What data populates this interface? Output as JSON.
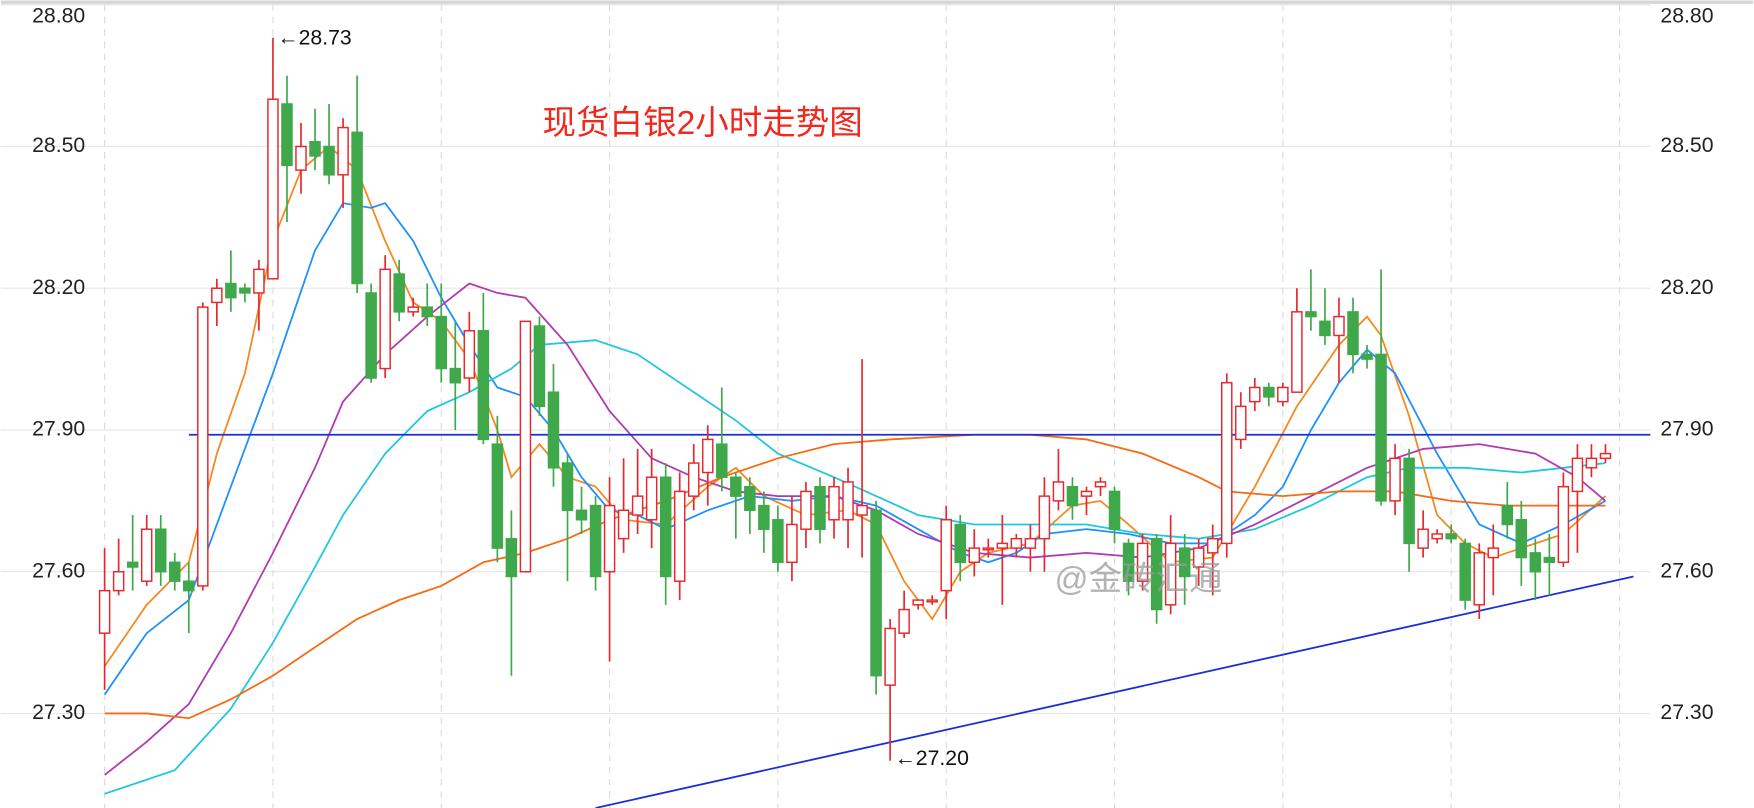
{
  "chart_data": {
    "type": "candlestick",
    "title": "现货白银2小时走势图",
    "watermark": "@金砖汇通",
    "ylim": [
      27.1,
      28.81
    ],
    "yticks": [
      {
        "value": 27.3,
        "label": "27.30"
      },
      {
        "value": 27.6,
        "label": "27.60"
      },
      {
        "value": 27.9,
        "label": "27.90"
      },
      {
        "value": 28.2,
        "label": "28.20"
      },
      {
        "value": 28.5,
        "label": "28.50"
      },
      {
        "value": 28.8,
        "label": "28.80"
      }
    ],
    "xlim": [
      -7.4,
      110.2
    ],
    "xticks": [
      0,
      12,
      24,
      36,
      48,
      60,
      72,
      84,
      96,
      108
    ],
    "grid": true,
    "up_color": "#e8262b",
    "down_color": "#3ea84a",
    "open": [
      27.47,
      27.56,
      27.62,
      27.58,
      27.69,
      27.62,
      27.58,
      27.57,
      28.17,
      28.21,
      28.2,
      28.19,
      28.22,
      28.59,
      28.45,
      28.51,
      28.5,
      28.44,
      28.53,
      28.19,
      28.03,
      28.23,
      28.15,
      28.16,
      28.14,
      28.03,
      28.01,
      28.11,
      27.87,
      27.67,
      27.6,
      28.12,
      27.98,
      27.83,
      27.73,
      27.74,
      27.6,
      27.67,
      27.72,
      27.71,
      27.8,
      27.58,
      27.76,
      27.81,
      27.87,
      27.8,
      27.78,
      27.74,
      27.71,
      27.62,
      27.69,
      27.78,
      27.71,
      27.71,
      27.72,
      27.73,
      27.36,
      27.47,
      27.53,
      27.54,
      27.56,
      27.7,
      27.62,
      27.65,
      27.65,
      27.65,
      27.65,
      27.67,
      27.75,
      27.78,
      27.76,
      27.78,
      27.77,
      27.66,
      27.58,
      27.67,
      27.53,
      27.65,
      27.61,
      27.64,
      27.66,
      27.88,
      27.96,
      27.99,
      27.96,
      27.98,
      28.15,
      28.13,
      28.1,
      28.15,
      28.06,
      28.06,
      27.75,
      27.84,
      27.65,
      27.67,
      27.68,
      27.66,
      27.53,
      27.63,
      27.74,
      27.71,
      27.64,
      27.63,
      27.62,
      27.77,
      27.82,
      27.84
    ],
    "high": [
      27.65,
      27.67,
      27.72,
      27.72,
      27.72,
      27.64,
      27.62,
      28.17,
      28.22,
      28.28,
      28.21,
      28.26,
      28.73,
      28.65,
      28.55,
      28.58,
      28.59,
      28.56,
      28.65,
      28.21,
      28.27,
      28.26,
      28.18,
      28.21,
      28.21,
      28.13,
      28.15,
      28.19,
      27.93,
      27.73,
      28.13,
      28.14,
      28.04,
      27.85,
      27.78,
      27.76,
      27.8,
      27.84,
      27.86,
      27.86,
      27.83,
      27.81,
      27.87,
      27.91,
      27.99,
      27.81,
      27.8,
      27.77,
      27.74,
      27.76,
      27.79,
      27.8,
      27.8,
      27.82,
      28.05,
      27.75,
      27.5,
      27.56,
      27.54,
      27.55,
      27.74,
      27.72,
      27.69,
      27.67,
      27.72,
      27.68,
      27.7,
      27.8,
      27.86,
      27.8,
      27.78,
      27.8,
      27.78,
      27.67,
      27.68,
      27.68,
      27.72,
      27.68,
      27.67,
      27.7,
      28.02,
      27.98,
      28.01,
      28.0,
      28.0,
      28.2,
      28.24,
      28.2,
      28.18,
      28.18,
      28.08,
      28.24,
      27.87,
      27.86,
      27.73,
      27.69,
      27.7,
      27.67,
      27.66,
      27.7,
      27.79,
      27.75,
      27.67,
      27.68,
      27.81,
      27.87,
      27.87,
      27.87
    ],
    "low": [
      27.35,
      27.55,
      27.56,
      27.57,
      27.57,
      27.56,
      27.47,
      27.56,
      28.12,
      28.15,
      28.17,
      28.11,
      28.22,
      28.34,
      28.4,
      28.45,
      28.42,
      28.37,
      28.19,
      28.0,
      28.01,
      28.13,
      28.14,
      28.12,
      28.0,
      27.9,
      27.98,
      27.87,
      27.62,
      27.38,
      27.6,
      27.93,
      27.78,
      27.58,
      27.68,
      27.56,
      27.41,
      27.64,
      27.68,
      27.65,
      27.53,
      27.54,
      27.73,
      27.74,
      27.77,
      27.67,
      27.68,
      27.64,
      27.6,
      27.58,
      27.65,
      27.66,
      27.67,
      27.65,
      27.63,
      27.34,
      27.2,
      27.46,
      27.52,
      27.53,
      27.5,
      27.58,
      27.59,
      27.63,
      27.53,
      27.63,
      27.6,
      27.6,
      27.73,
      27.71,
      27.72,
      27.76,
      27.66,
      27.55,
      27.56,
      27.49,
      27.51,
      27.53,
      27.57,
      27.55,
      27.63,
      27.86,
      27.94,
      27.95,
      27.95,
      27.98,
      28.11,
      28.08,
      28.0,
      28.02,
      28.03,
      27.74,
      27.72,
      27.6,
      27.63,
      27.66,
      27.66,
      27.52,
      27.5,
      27.55,
      27.67,
      27.57,
      27.54,
      27.55,
      27.61,
      27.64,
      27.8,
      27.83
    ],
    "close": [
      27.56,
      27.6,
      27.61,
      27.69,
      27.6,
      27.58,
      27.56,
      28.16,
      28.2,
      28.18,
      28.19,
      28.24,
      28.6,
      28.46,
      28.5,
      28.48,
      28.44,
      28.54,
      28.21,
      28.01,
      28.24,
      28.15,
      28.16,
      28.14,
      28.03,
      28.0,
      28.11,
      27.88,
      27.65,
      27.59,
      28.13,
      27.95,
      27.82,
      27.73,
      27.71,
      27.59,
      27.74,
      27.73,
      27.76,
      27.8,
      27.59,
      27.77,
      27.83,
      27.88,
      27.8,
      27.76,
      27.73,
      27.69,
      27.62,
      27.7,
      27.77,
      27.69,
      27.78,
      27.79,
      27.74,
      27.38,
      27.48,
      27.52,
      27.54,
      27.54,
      27.71,
      27.62,
      27.65,
      27.65,
      27.66,
      27.67,
      27.67,
      27.76,
      27.79,
      27.74,
      27.77,
      27.79,
      27.69,
      27.58,
      27.66,
      27.52,
      27.66,
      27.59,
      27.65,
      27.67,
      28.0,
      27.95,
      27.99,
      27.97,
      27.99,
      28.15,
      28.14,
      28.1,
      28.14,
      28.06,
      28.05,
      27.75,
      27.84,
      27.66,
      27.69,
      27.68,
      27.67,
      27.54,
      27.64,
      27.65,
      27.7,
      27.63,
      27.6,
      27.62,
      27.78,
      27.84,
      27.84,
      27.85
    ],
    "lines": [
      {
        "color": "#f5891f",
        "x": [
          0,
          3,
          6,
          8,
          10,
          12,
          14,
          16,
          18,
          20,
          22,
          24,
          26,
          28,
          29,
          31,
          33,
          35,
          37,
          40,
          43,
          45,
          47,
          50,
          53,
          55,
          57,
          59,
          61,
          63,
          66,
          69,
          71,
          73,
          76,
          79,
          82,
          85,
          88,
          90,
          91,
          93,
          95,
          97,
          99,
          101,
          104,
          107
        ],
        "values": [
          27.4,
          27.53,
          27.62,
          27.85,
          28.02,
          28.3,
          28.45,
          28.5,
          28.45,
          28.3,
          28.17,
          28.13,
          28.05,
          27.9,
          27.8,
          27.87,
          27.8,
          27.78,
          27.71,
          27.7,
          27.78,
          27.82,
          27.76,
          27.72,
          27.73,
          27.7,
          27.58,
          27.5,
          27.6,
          27.64,
          27.66,
          27.74,
          27.75,
          27.7,
          27.62,
          27.63,
          27.78,
          27.95,
          28.08,
          28.14,
          28.1,
          27.93,
          27.72,
          27.66,
          27.63,
          27.65,
          27.68,
          27.76
        ]
      },
      {
        "color": "#1e90ff",
        "x": [
          0,
          3,
          6,
          9,
          12,
          15,
          17,
          19,
          20,
          22,
          24,
          26,
          28,
          30,
          32,
          34,
          36,
          38,
          40,
          43,
          46,
          49,
          52,
          55,
          58,
          61,
          63,
          65,
          67,
          70,
          73,
          76,
          79,
          82,
          84,
          86,
          88,
          90,
          92,
          95,
          98,
          101,
          104,
          107
        ],
        "values": [
          27.34,
          27.47,
          27.54,
          27.78,
          28.02,
          28.28,
          28.38,
          28.37,
          28.38,
          28.3,
          28.18,
          28.08,
          27.99,
          27.97,
          27.9,
          27.8,
          27.73,
          27.72,
          27.69,
          27.73,
          27.76,
          27.75,
          27.76,
          27.74,
          27.69,
          27.64,
          27.62,
          27.64,
          27.68,
          27.69,
          27.68,
          27.66,
          27.66,
          27.72,
          27.78,
          27.9,
          28.0,
          28.07,
          28.02,
          27.85,
          27.7,
          27.66,
          27.7,
          27.75
        ]
      },
      {
        "color": "#20c7e0",
        "x": [
          0,
          5,
          9,
          12,
          15,
          17,
          20,
          23,
          26,
          29,
          31,
          35,
          38,
          42,
          45,
          48,
          52,
          55,
          58,
          62,
          66,
          70,
          74,
          78,
          82,
          86,
          90,
          93,
          97,
          101,
          104,
          107
        ],
        "values": [
          27.13,
          27.18,
          27.31,
          27.45,
          27.61,
          27.72,
          27.85,
          27.94,
          27.98,
          28.03,
          28.08,
          28.09,
          28.06,
          27.98,
          27.92,
          27.85,
          27.8,
          27.76,
          27.72,
          27.7,
          27.7,
          27.7,
          27.68,
          27.67,
          27.69,
          27.74,
          27.8,
          27.82,
          27.82,
          27.81,
          27.82,
          27.83
        ]
      },
      {
        "color": "#b03ab0",
        "x": [
          0,
          3,
          6,
          9,
          12,
          15,
          17,
          20,
          23,
          26,
          28,
          30,
          33,
          36,
          39,
          42,
          45,
          48,
          52,
          55,
          58,
          62,
          66,
          70,
          74,
          78,
          82,
          86,
          90,
          94,
          98,
          102,
          105,
          107
        ],
        "values": [
          27.17,
          27.24,
          27.32,
          27.47,
          27.64,
          27.82,
          27.96,
          28.06,
          28.14,
          28.21,
          28.19,
          28.18,
          28.08,
          27.94,
          27.84,
          27.8,
          27.77,
          27.76,
          27.76,
          27.73,
          27.68,
          27.64,
          27.63,
          27.64,
          27.63,
          27.65,
          27.7,
          27.76,
          27.82,
          27.86,
          27.87,
          27.85,
          27.8,
          27.75
        ]
      },
      {
        "color": "#f56a12",
        "x": [
          0,
          3,
          6,
          9,
          12,
          15,
          18,
          21,
          24,
          27,
          30,
          33,
          36,
          40,
          44,
          48,
          52,
          56,
          62,
          66,
          70,
          74,
          78,
          80,
          84,
          88,
          92,
          96,
          100,
          104,
          107
        ],
        "values": [
          27.3,
          27.3,
          27.29,
          27.33,
          27.38,
          27.44,
          27.5,
          27.54,
          27.57,
          27.62,
          27.64,
          27.67,
          27.71,
          27.75,
          27.8,
          27.84,
          27.87,
          27.88,
          27.89,
          27.89,
          27.88,
          27.85,
          27.8,
          27.77,
          27.76,
          27.77,
          27.77,
          27.75,
          27.74,
          27.74,
          27.74
        ]
      },
      {
        "color": "#1a2fd6",
        "x": [
          6,
          110.2
        ],
        "values": [
          27.89,
          27.89
        ]
      },
      {
        "color": "#1a2fd6",
        "x": [
          35,
          109
        ],
        "values": [
          27.1,
          27.59
        ]
      }
    ],
    "annotations": [
      {
        "text": "←28.73",
        "x": 12,
        "y": 28.73
      },
      {
        "text": "←27.20",
        "x": 56,
        "y": 27.2
      }
    ]
  }
}
